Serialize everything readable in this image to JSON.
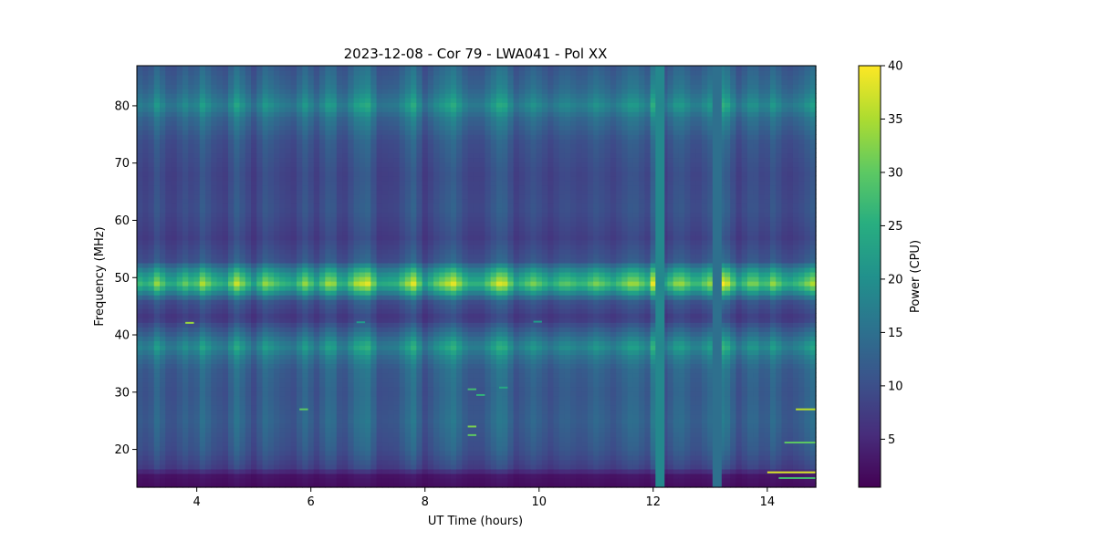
{
  "chart_data": {
    "type": "heatmap",
    "title": "2023-12-08 - Cor 79 - LWA041 - Pol XX",
    "xlabel": "UT Time (hours)",
    "ylabel": "Frequency (MHz)",
    "xlim": [
      2.95,
      14.85
    ],
    "ylim": [
      13.4,
      87.0
    ],
    "xticks": [
      {
        "v": 4,
        "label": "4"
      },
      {
        "v": 6,
        "label": "6"
      },
      {
        "v": 8,
        "label": "8"
      },
      {
        "v": 10,
        "label": "10"
      },
      {
        "v": 12,
        "label": "12"
      },
      {
        "v": 14,
        "label": "14"
      }
    ],
    "yticks": [
      {
        "v": 20,
        "label": "20"
      },
      {
        "v": 30,
        "label": "30"
      },
      {
        "v": 40,
        "label": "40"
      },
      {
        "v": 50,
        "label": "50"
      },
      {
        "v": 60,
        "label": "60"
      },
      {
        "v": 70,
        "label": "70"
      },
      {
        "v": 80,
        "label": "80"
      }
    ],
    "colorbar": {
      "label": "Power (CPU)",
      "range": [
        0.5,
        40
      ],
      "ticks": [
        {
          "v": 5,
          "label": "5"
        },
        {
          "v": 10,
          "label": "10"
        },
        {
          "v": 15,
          "label": "15"
        },
        {
          "v": 20,
          "label": "20"
        },
        {
          "v": 25,
          "label": "25"
        },
        {
          "v": 30,
          "label": "30"
        },
        {
          "v": 35,
          "label": "35"
        },
        {
          "v": 40,
          "label": "40"
        }
      ],
      "colormap": "viridis"
    },
    "spectrum_profile": [
      {
        "f": 13.4,
        "p": 2
      },
      {
        "f": 15.5,
        "p": 3
      },
      {
        "f": 17,
        "p": 9
      },
      {
        "f": 20,
        "p": 12
      },
      {
        "f": 25,
        "p": 14
      },
      {
        "f": 30,
        "p": 13
      },
      {
        "f": 34,
        "p": 14
      },
      {
        "f": 36,
        "p": 17
      },
      {
        "f": 38,
        "p": 22
      },
      {
        "f": 40,
        "p": 16
      },
      {
        "f": 43,
        "p": 8
      },
      {
        "f": 46,
        "p": 12
      },
      {
        "f": 48,
        "p": 26
      },
      {
        "f": 49,
        "p": 32
      },
      {
        "f": 51,
        "p": 24
      },
      {
        "f": 53,
        "p": 12
      },
      {
        "f": 57,
        "p": 9
      },
      {
        "f": 62,
        "p": 11
      },
      {
        "f": 68,
        "p": 10
      },
      {
        "f": 74,
        "p": 12
      },
      {
        "f": 78,
        "p": 16
      },
      {
        "f": 80,
        "p": 21
      },
      {
        "f": 83,
        "p": 16
      },
      {
        "f": 87,
        "p": 13
      }
    ],
    "column_scale": [
      {
        "t": 3.0,
        "s": 0.85
      },
      {
        "t": 3.15,
        "s": 0.75
      },
      {
        "t": 3.3,
        "s": 1.05
      },
      {
        "t": 3.55,
        "s": 0.7
      },
      {
        "t": 3.8,
        "s": 0.95
      },
      {
        "t": 3.95,
        "s": 0.8
      },
      {
        "t": 4.1,
        "s": 1.1
      },
      {
        "t": 4.3,
        "s": 0.85
      },
      {
        "t": 4.5,
        "s": 0.75
      },
      {
        "t": 4.7,
        "s": 1.15
      },
      {
        "t": 5.0,
        "s": 0.7
      },
      {
        "t": 5.2,
        "s": 1.05
      },
      {
        "t": 5.45,
        "s": 0.85
      },
      {
        "t": 5.7,
        "s": 0.75
      },
      {
        "t": 5.9,
        "s": 1.05
      },
      {
        "t": 6.1,
        "s": 0.75
      },
      {
        "t": 6.35,
        "s": 1.15
      },
      {
        "t": 6.55,
        "s": 0.7
      },
      {
        "t": 6.8,
        "s": 1.1
      },
      {
        "t": 7.0,
        "s": 1.2
      },
      {
        "t": 7.2,
        "s": 0.75
      },
      {
        "t": 7.5,
        "s": 0.8
      },
      {
        "t": 7.8,
        "s": 1.2
      },
      {
        "t": 8.0,
        "s": 0.7
      },
      {
        "t": 8.2,
        "s": 0.95
      },
      {
        "t": 8.5,
        "s": 1.2
      },
      {
        "t": 8.75,
        "s": 0.8
      },
      {
        "t": 9.0,
        "s": 0.8
      },
      {
        "t": 9.35,
        "s": 1.25
      },
      {
        "t": 9.6,
        "s": 0.75
      },
      {
        "t": 9.9,
        "s": 1.0
      },
      {
        "t": 10.2,
        "s": 0.75
      },
      {
        "t": 10.45,
        "s": 0.95
      },
      {
        "t": 10.75,
        "s": 0.8
      },
      {
        "t": 11.0,
        "s": 1.0
      },
      {
        "t": 11.3,
        "s": 0.8
      },
      {
        "t": 11.65,
        "s": 1.1
      },
      {
        "t": 11.9,
        "s": 0.85
      },
      {
        "t": 12.05,
        "s": 1.4
      },
      {
        "t": 12.2,
        "s": 0.75
      },
      {
        "t": 12.45,
        "s": 1.1
      },
      {
        "t": 12.75,
        "s": 0.8
      },
      {
        "t": 13.0,
        "s": 1.05
      },
      {
        "t": 13.15,
        "s": 1.3
      },
      {
        "t": 13.3,
        "s": 1.15
      },
      {
        "t": 13.5,
        "s": 0.75
      },
      {
        "t": 13.75,
        "s": 1.05
      },
      {
        "t": 13.95,
        "s": 0.8
      },
      {
        "t": 14.1,
        "s": 1.05
      },
      {
        "t": 14.35,
        "s": 0.75
      },
      {
        "t": 14.6,
        "s": 0.9
      },
      {
        "t": 14.85,
        "s": 1.15
      }
    ],
    "rfi_columns": [
      {
        "t0": 12.04,
        "t1": 12.2,
        "power": 19
      },
      {
        "t0": 13.04,
        "t1": 13.2,
        "power": 15
      }
    ],
    "rfi_segments": [
      {
        "t0": 3.8,
        "t1": 3.95,
        "f": 42.1,
        "power": 34
      },
      {
        "t0": 6.8,
        "t1": 6.95,
        "f": 42.2,
        "power": 22
      },
      {
        "t0": 9.9,
        "t1": 10.05,
        "f": 42.3,
        "power": 22
      },
      {
        "t0": 5.8,
        "t1": 5.95,
        "f": 27.0,
        "power": 30
      },
      {
        "t0": 14.5,
        "t1": 14.85,
        "f": 27.0,
        "power": 36
      },
      {
        "t0": 14.3,
        "t1": 14.85,
        "f": 21.2,
        "power": 30
      },
      {
        "t0": 14.0,
        "t1": 14.85,
        "f": 16.0,
        "power": 38
      },
      {
        "t0": 14.2,
        "t1": 14.85,
        "f": 15.0,
        "power": 28
      },
      {
        "t0": 8.75,
        "t1": 8.9,
        "f": 24.0,
        "power": 32
      },
      {
        "t0": 8.75,
        "t1": 8.9,
        "f": 22.5,
        "power": 30
      },
      {
        "t0": 8.75,
        "t1": 8.9,
        "f": 30.5,
        "power": 28
      },
      {
        "t0": 8.9,
        "t1": 9.05,
        "f": 29.5,
        "power": 26
      },
      {
        "t0": 9.3,
        "t1": 9.45,
        "f": 30.8,
        "power": 24
      }
    ]
  }
}
